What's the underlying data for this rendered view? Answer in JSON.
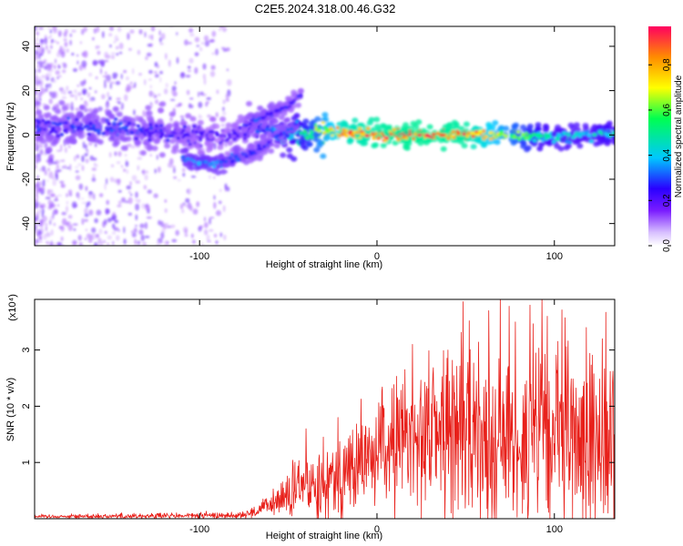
{
  "figure_title": "C2E5.2024.318.00.46.G32",
  "chart_data": [
    {
      "type": "heatmap",
      "title": "C2E5.2024.318.00.46.G32",
      "xlabel": "Height of straight line (km)",
      "ylabel": "Frequency (Hz)",
      "xlim": [
        -193,
        134
      ],
      "ylim": [
        -50,
        49
      ],
      "xticks": [
        -100,
        0,
        100
      ],
      "yticks": [
        -40,
        -20,
        0,
        20,
        40
      ],
      "xtick_labels": [
        "-100",
        "0",
        "100"
      ],
      "ytick_labels": [
        "-40",
        "-20",
        "0",
        "20",
        "40"
      ],
      "colorbar": {
        "label": "Normalized spectral amplitude",
        "range": [
          0,
          0.97
        ],
        "ticks": [
          0.0,
          0.2,
          0.4,
          0.6,
          0.8
        ],
        "tick_labels": [
          "0.0",
          "0.2",
          "0.4",
          "0.6",
          "0.8"
        ],
        "colors": [
          "#ffffff",
          "#b070ff",
          "#3a00ff",
          "#00d0ff",
          "#00ff60",
          "#ffff00",
          "#ff9000",
          "#ff0050"
        ]
      },
      "ridges": [
        {
          "name": "main carrier",
          "x": [
            -193,
            -150,
            -110,
            -90,
            -70,
            -55,
            -40,
            -30,
            -20,
            0,
            20,
            50,
            80,
            100,
            120,
            134
          ],
          "y": [
            4,
            3,
            1,
            -1,
            2,
            1,
            0,
            2,
            1,
            0,
            0,
            0,
            0,
            -1,
            0,
            1
          ],
          "amplitude": [
            0.3,
            0.32,
            0.28,
            0.25,
            0.3,
            0.4,
            0.55,
            0.7,
            0.85,
            0.9,
            0.92,
            0.9,
            0.6,
            0.45,
            0.45,
            0.5
          ]
        },
        {
          "name": "lower trace",
          "x": [
            -110,
            -100,
            -85,
            -70,
            -60,
            -50,
            -45
          ],
          "y": [
            -10,
            -13,
            -12,
            -8,
            -3,
            2,
            5
          ],
          "amplitude": [
            0.35,
            0.4,
            0.35,
            0.3,
            0.3,
            0.32,
            0.35
          ]
        },
        {
          "name": "upper trace",
          "x": [
            -75,
            -65,
            -55,
            -48,
            -42
          ],
          "y": [
            5,
            8,
            11,
            15,
            19
          ],
          "amplitude": [
            0.3,
            0.32,
            0.3,
            0.28,
            0.28
          ]
        }
      ]
    },
    {
      "type": "line",
      "xlabel": "Height of straight line (km)",
      "ylabel": "SNR (10 * v/v)",
      "y_scale_label": "(x10⁴)",
      "xlim": [
        -193,
        134
      ],
      "ylim": [
        0,
        3.9
      ],
      "xticks": [
        -100,
        0,
        100
      ],
      "yticks": [
        1,
        2,
        3
      ],
      "xtick_labels": [
        "-100",
        "0",
        "100"
      ],
      "ytick_labels": [
        "1",
        "2",
        "3"
      ],
      "series_color": "#e8201a",
      "envelope": {
        "x": [
          -193,
          -120,
          -80,
          -70,
          -60,
          -45,
          -40,
          -30,
          -20,
          -10,
          0,
          10,
          20,
          30,
          50,
          60,
          80,
          100,
          120,
          134
        ],
        "mean": [
          0.04,
          0.05,
          0.06,
          0.1,
          0.25,
          0.5,
          0.6,
          0.7,
          0.8,
          0.95,
          1.2,
          1.35,
          1.5,
          1.6,
          1.6,
          1.5,
          1.45,
          1.4,
          1.4,
          1.4
        ],
        "amplitude": [
          0.03,
          0.05,
          0.05,
          0.08,
          0.2,
          0.5,
          0.6,
          0.6,
          0.7,
          0.8,
          0.9,
          1.0,
          1.2,
          1.3,
          1.5,
          1.6,
          1.7,
          1.6,
          1.5,
          1.4
        ]
      },
      "peaks": [
        {
          "x": -40,
          "y": 1.6
        },
        {
          "x": -22,
          "y": 1.8
        },
        {
          "x": 20,
          "y": 3.1
        },
        {
          "x": 40,
          "y": 3.0
        },
        {
          "x": 63,
          "y": 3.7
        },
        {
          "x": 78,
          "y": 3.5
        },
        {
          "x": 93,
          "y": 3.9
        },
        {
          "x": 96,
          "y": 3.6
        },
        {
          "x": 118,
          "y": 3.4
        },
        {
          "x": 127,
          "y": 3.2
        }
      ]
    }
  ]
}
